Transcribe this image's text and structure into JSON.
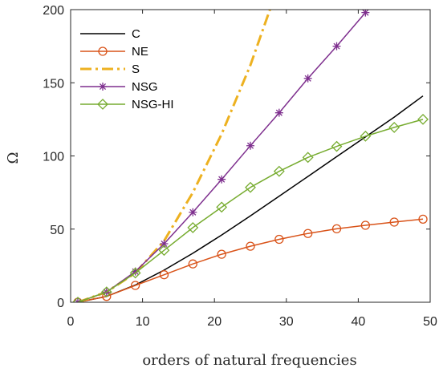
{
  "chart_data": {
    "type": "line",
    "title": "",
    "xlabel": "orders of natural frequencies",
    "ylabel": "Ω",
    "xlim": [
      0,
      50
    ],
    "ylim": [
      0,
      200
    ],
    "xticks": [
      0,
      10,
      20,
      30,
      40,
      50
    ],
    "yticks": [
      0,
      50,
      100,
      150,
      200
    ],
    "grid": false,
    "legend": "top-left",
    "series": [
      {
        "name": "C",
        "color": "#000000",
        "style": "solid",
        "marker": "none",
        "x": [
          1,
          5,
          9,
          13,
          17,
          21,
          25,
          29,
          33,
          37,
          41,
          45,
          49
        ],
        "y": [
          0.0,
          4.0,
          11.8,
          22.0,
          33.5,
          46.0,
          59.0,
          72.5,
          86.0,
          99.5,
          113.0,
          126.5,
          141.0
        ]
      },
      {
        "name": "NE",
        "color": "#d95319",
        "style": "solid",
        "marker": "circle",
        "x": [
          1,
          5,
          9,
          13,
          17,
          21,
          25,
          29,
          33,
          37,
          41,
          45,
          49
        ],
        "y": [
          0.0,
          4.0,
          11.5,
          18.8,
          26.2,
          32.8,
          38.3,
          43.0,
          47.0,
          50.2,
          52.6,
          54.8,
          56.8
        ]
      },
      {
        "name": "S",
        "color": "#edb120",
        "style": "dashdot",
        "marker": "none",
        "x": [
          1,
          5,
          9,
          13,
          17,
          21,
          25,
          28
        ],
        "y": [
          0.0,
          7.0,
          20.0,
          42.0,
          75.0,
          115.0,
          162.0,
          204.0
        ]
      },
      {
        "name": "NSG",
        "color": "#7e2f8e",
        "style": "solid",
        "marker": "star",
        "x": [
          1,
          5,
          9,
          13,
          17,
          21,
          25,
          29,
          33,
          37,
          41
        ],
        "y": [
          0.0,
          7.0,
          21.0,
          40.0,
          61.5,
          84.0,
          107.0,
          129.5,
          153.0,
          175.0,
          198.0
        ]
      },
      {
        "name": "NSG-HI",
        "color": "#77ac30",
        "style": "solid",
        "marker": "diamond",
        "x": [
          1,
          5,
          9,
          13,
          17,
          21,
          25,
          29,
          33,
          37,
          41,
          45,
          49
        ],
        "y": [
          0.0,
          7.0,
          20.0,
          35.5,
          51.0,
          65.0,
          78.5,
          89.5,
          99.0,
          106.5,
          113.5,
          119.5,
          125.0
        ]
      }
    ]
  }
}
